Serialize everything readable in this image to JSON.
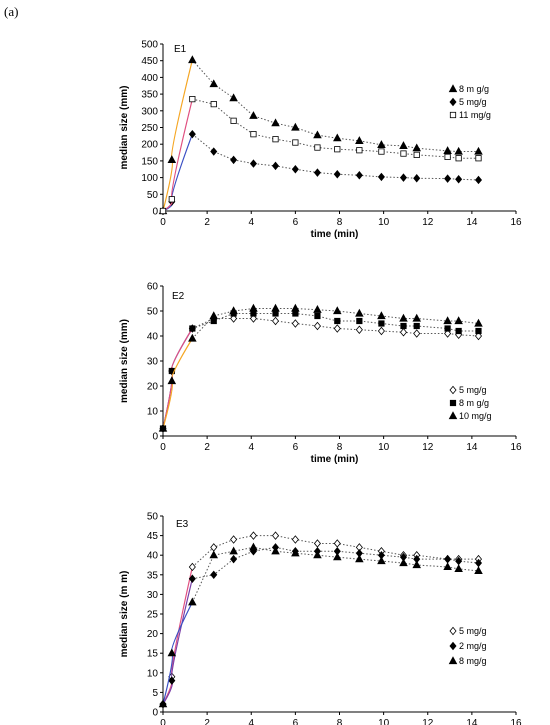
{
  "figure": {
    "panel_label": "(a)"
  },
  "chart_data": [
    {
      "type": "scatter",
      "title": "E1",
      "xlabel": "time (min)",
      "ylabel": "median size (mm)",
      "xlim": [
        0,
        16
      ],
      "ylim": [
        0,
        500
      ],
      "xticks": [
        0,
        2,
        4,
        6,
        8,
        10,
        12,
        14,
        16
      ],
      "yticks": [
        0,
        50,
        100,
        150,
        200,
        250,
        300,
        350,
        400,
        450,
        500
      ],
      "legend_position": "right",
      "grid": false,
      "series": [
        {
          "name": "8 m g/g",
          "marker": "triangle",
          "color": "#000000",
          "rise_color": "#f5a623",
          "x": [
            0,
            0.4,
            1.33,
            2.3,
            3.2,
            4.1,
            5.1,
            6.0,
            7.0,
            7.9,
            8.9,
            9.9,
            10.9,
            11.5,
            12.9,
            13.4,
            14.3
          ],
          "y": [
            0,
            153,
            452,
            380,
            338,
            285,
            263,
            250,
            227,
            218,
            210,
            198,
            195,
            188,
            180,
            178,
            178
          ]
        },
        {
          "name": "5 mg/g",
          "marker": "diamond",
          "color": "#000000",
          "rise_color": "#3a4fc4",
          "x": [
            0,
            0.4,
            1.33,
            2.3,
            3.2,
            4.1,
            5.1,
            6.0,
            7.0,
            7.9,
            8.9,
            9.9,
            10.9,
            11.5,
            12.9,
            13.4,
            14.3
          ],
          "y": [
            0,
            28,
            230,
            178,
            153,
            142,
            135,
            125,
            115,
            110,
            107,
            102,
            100,
            98,
            97,
            95,
            93
          ]
        },
        {
          "name": "11 mg/g",
          "marker": "square-open",
          "color": "#000000",
          "rise_color": "#e05080",
          "x": [
            0,
            0.4,
            1.33,
            2.3,
            3.2,
            4.1,
            5.1,
            6.0,
            7.0,
            7.9,
            8.9,
            9.9,
            10.9,
            11.5,
            12.9,
            13.4,
            14.3
          ],
          "y": [
            0,
            35,
            335,
            320,
            270,
            230,
            215,
            205,
            190,
            185,
            182,
            178,
            172,
            168,
            162,
            158,
            158
          ]
        }
      ]
    },
    {
      "type": "scatter",
      "title": "E2",
      "xlabel": "time (min)",
      "ylabel": "median size (mm)",
      "xlim": [
        0,
        16
      ],
      "ylim": [
        0,
        60
      ],
      "xticks": [
        0,
        2,
        4,
        6,
        8,
        10,
        12,
        14,
        16
      ],
      "yticks": [
        0,
        10,
        20,
        30,
        40,
        50,
        60
      ],
      "legend_position": "right",
      "grid": false,
      "series": [
        {
          "name": "5 mg/g",
          "marker": "diamond-open",
          "color": "#000000",
          "rise_color": "#3a4fc4",
          "x": [
            0,
            0.4,
            1.33,
            2.3,
            3.2,
            4.1,
            5.1,
            6.0,
            7.0,
            7.9,
            8.9,
            9.9,
            10.9,
            11.5,
            12.9,
            13.4,
            14.3
          ],
          "y": [
            3,
            26,
            43,
            47,
            47,
            47,
            46,
            45,
            44,
            43,
            42.5,
            42,
            41.5,
            41,
            41,
            40.5,
            40
          ]
        },
        {
          "name": "8 m g/g",
          "marker": "square",
          "color": "#000000",
          "rise_color": "#e05080",
          "x": [
            0,
            0.4,
            1.33,
            2.3,
            3.2,
            4.1,
            5.1,
            6.0,
            7.0,
            7.9,
            8.9,
            9.9,
            10.9,
            11.5,
            12.9,
            13.4,
            14.3
          ],
          "y": [
            3,
            26,
            43,
            46,
            49,
            49,
            49,
            49,
            48,
            46,
            46,
            45,
            44,
            44,
            43,
            42,
            42
          ]
        },
        {
          "name": "10 mg/g",
          "marker": "triangle",
          "color": "#000000",
          "rise_color": "#f5a623",
          "x": [
            0,
            0.4,
            1.33,
            2.3,
            3.2,
            4.1,
            5.1,
            6.0,
            7.0,
            7.9,
            8.9,
            9.9,
            10.9,
            11.5,
            12.9,
            13.4,
            14.3
          ],
          "y": [
            3,
            22,
            39,
            48,
            50,
            51,
            51,
            51,
            50.5,
            50,
            49,
            48,
            47,
            47,
            46,
            46,
            45
          ]
        }
      ]
    },
    {
      "type": "scatter",
      "title": "E3",
      "xlabel": "time (min)",
      "ylabel": "median size (m m)",
      "xlim": [
        0,
        16
      ],
      "ylim": [
        0,
        50
      ],
      "xticks": [
        0,
        2,
        4,
        6,
        8,
        10,
        12,
        14,
        16
      ],
      "yticks": [
        0,
        5,
        10,
        15,
        20,
        25,
        30,
        35,
        40,
        45,
        50
      ],
      "legend_position": "bottom-right",
      "grid": false,
      "series": [
        {
          "name": "5 mg/g",
          "marker": "diamond-open",
          "color": "#000000",
          "rise_color": "#e05080",
          "x": [
            0,
            0.4,
            1.33,
            2.3,
            3.2,
            4.1,
            5.1,
            6.0,
            7.0,
            7.9,
            8.9,
            9.9,
            10.9,
            11.5,
            12.9,
            13.4,
            14.3
          ],
          "y": [
            2,
            9,
            37,
            42,
            44,
            45,
            45,
            44,
            43,
            43,
            42,
            41,
            40,
            40,
            39,
            39,
            39
          ]
        },
        {
          "name": "2 mg/g",
          "marker": "diamond",
          "color": "#000000",
          "rise_color": "#7a3fa8",
          "x": [
            0,
            0.4,
            1.33,
            2.3,
            3.2,
            4.1,
            5.1,
            6.0,
            7.0,
            7.9,
            8.9,
            9.9,
            10.9,
            11.5,
            12.9,
            13.4,
            14.3
          ],
          "y": [
            2,
            8,
            34,
            35,
            39,
            41,
            42,
            41,
            41,
            41,
            40.5,
            40,
            39.5,
            39,
            39,
            38.5,
            38
          ]
        },
        {
          "name": "8 mg/g",
          "marker": "triangle",
          "color": "#000000",
          "rise_color": "#3a4fc4",
          "x": [
            0,
            0.4,
            1.33,
            2.3,
            3.2,
            4.1,
            5.1,
            6.0,
            7.0,
            7.9,
            8.9,
            9.9,
            10.9,
            11.5,
            12.9,
            13.4,
            14.3
          ],
          "y": [
            2,
            15,
            28,
            40,
            41,
            42,
            41,
            40.5,
            40,
            39.5,
            39,
            38.5,
            38,
            37.5,
            37,
            36.5,
            36
          ]
        }
      ]
    }
  ]
}
